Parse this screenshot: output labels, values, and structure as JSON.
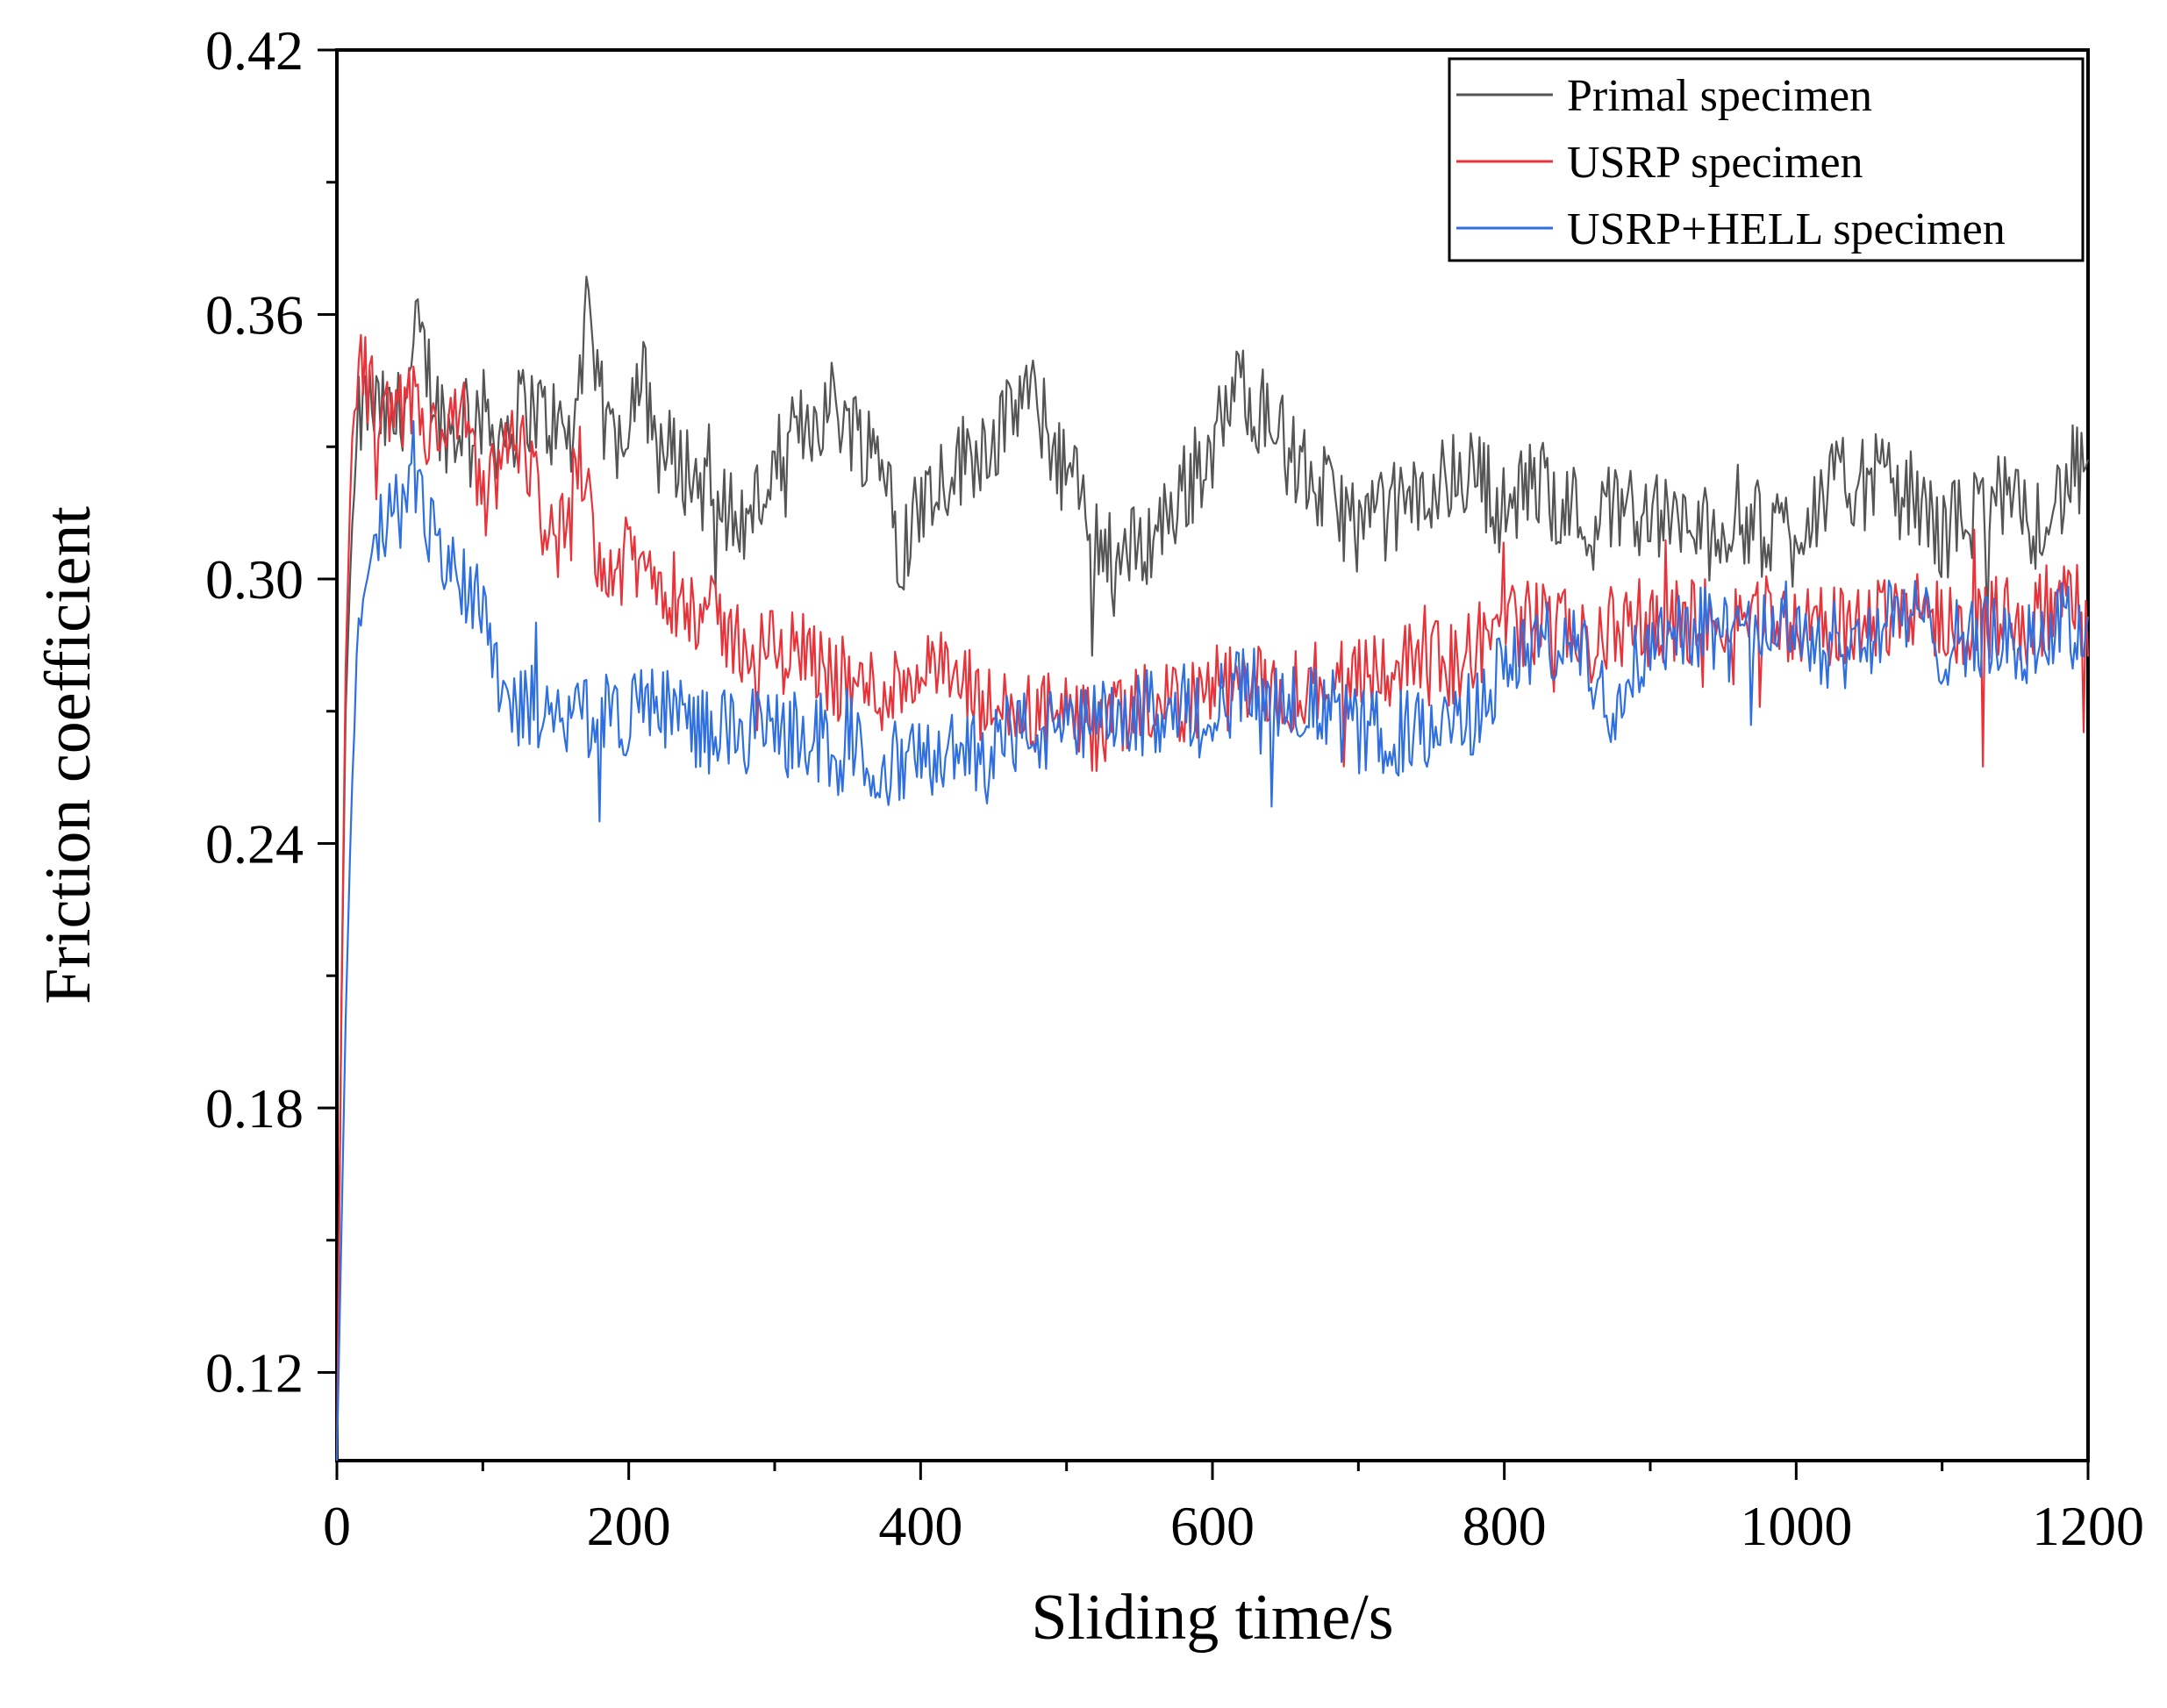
{
  "chart_data": {
    "type": "line",
    "title": "",
    "xlabel": "Sliding time/s",
    "ylabel": "Friction coefficient",
    "xlim": [
      0,
      1200
    ],
    "ylim": [
      0.1,
      0.42
    ],
    "xticks": [
      0,
      200,
      400,
      600,
      800,
      1000,
      1200
    ],
    "xtick_labels": [
      "0",
      "200",
      "400",
      "600",
      "800",
      "1000",
      "1200"
    ],
    "yticks": [
      0.12,
      0.18,
      0.24,
      0.3,
      0.36,
      0.42
    ],
    "ytick_labels": [
      "0.12",
      "0.18",
      "0.24",
      "0.30",
      "0.36",
      "0.42"
    ],
    "legend_position": "top-right",
    "grid": false,
    "series": [
      {
        "name": "Primal specimen",
        "color": "#555555",
        "x": [
          0,
          3,
          6,
          10,
          15,
          20,
          30,
          40,
          50,
          55,
          60,
          70,
          80,
          90,
          100,
          110,
          120,
          130,
          140,
          150,
          160,
          165,
          170,
          180,
          190,
          200,
          210,
          220,
          240,
          260,
          280,
          300,
          320,
          340,
          360,
          380,
          385,
          400,
          420,
          440,
          460,
          470,
          480,
          500,
          520,
          540,
          560,
          580,
          600,
          620,
          640,
          660,
          680,
          700,
          720,
          740,
          760,
          780,
          800,
          820,
          840,
          860,
          880,
          900,
          920,
          940,
          960,
          980,
          1000,
          1020,
          1040,
          1060,
          1080,
          1100,
          1120,
          1140,
          1160,
          1180,
          1190,
          1200
        ],
        "y": [
          0.1,
          0.2,
          0.27,
          0.31,
          0.335,
          0.34,
          0.337,
          0.335,
          0.345,
          0.355,
          0.35,
          0.338,
          0.332,
          0.34,
          0.337,
          0.333,
          0.335,
          0.34,
          0.337,
          0.335,
          0.33,
          0.34,
          0.36,
          0.34,
          0.33,
          0.34,
          0.345,
          0.33,
          0.325,
          0.318,
          0.312,
          0.325,
          0.335,
          0.34,
          0.332,
          0.325,
          0.305,
          0.318,
          0.325,
          0.33,
          0.335,
          0.343,
          0.338,
          0.325,
          0.31,
          0.305,
          0.31,
          0.32,
          0.33,
          0.345,
          0.335,
          0.325,
          0.318,
          0.312,
          0.315,
          0.318,
          0.322,
          0.325,
          0.315,
          0.322,
          0.318,
          0.312,
          0.318,
          0.315,
          0.312,
          0.31,
          0.315,
          0.31,
          0.312,
          0.32,
          0.322,
          0.322,
          0.318,
          0.31,
          0.315,
          0.318,
          0.312,
          0.318,
          0.325,
          0.32
        ]
      },
      {
        "name": "USRP specimen",
        "color": "#e8333a",
        "x": [
          0,
          3,
          6,
          10,
          15,
          20,
          30,
          40,
          50,
          60,
          70,
          80,
          90,
          100,
          110,
          120,
          130,
          140,
          150,
          160,
          165,
          170,
          180,
          190,
          200,
          220,
          240,
          260,
          280,
          300,
          320,
          340,
          360,
          380,
          400,
          420,
          440,
          460,
          480,
          500,
          520,
          540,
          560,
          580,
          600,
          620,
          640,
          660,
          680,
          700,
          720,
          740,
          760,
          780,
          800,
          820,
          840,
          860,
          880,
          900,
          920,
          940,
          960,
          980,
          1000,
          1020,
          1040,
          1060,
          1080,
          1100,
          1120,
          1140,
          1160,
          1180,
          1190,
          1200
        ],
        "y": [
          0.1,
          0.2,
          0.28,
          0.33,
          0.35,
          0.345,
          0.335,
          0.335,
          0.34,
          0.335,
          0.33,
          0.335,
          0.335,
          0.315,
          0.325,
          0.33,
          0.33,
          0.315,
          0.31,
          0.31,
          0.33,
          0.325,
          0.305,
          0.3,
          0.305,
          0.3,
          0.295,
          0.29,
          0.285,
          0.283,
          0.285,
          0.278,
          0.275,
          0.275,
          0.28,
          0.278,
          0.272,
          0.268,
          0.27,
          0.268,
          0.265,
          0.268,
          0.272,
          0.272,
          0.275,
          0.275,
          0.275,
          0.275,
          0.278,
          0.28,
          0.28,
          0.282,
          0.28,
          0.285,
          0.29,
          0.29,
          0.288,
          0.285,
          0.29,
          0.29,
          0.29,
          0.29,
          0.292,
          0.292,
          0.29,
          0.288,
          0.29,
          0.292,
          0.295,
          0.29,
          0.29,
          0.292,
          0.29,
          0.293,
          0.295,
          0.29
        ]
      },
      {
        "name": "USRP+HELL specimen",
        "color": "#2f6fe0",
        "x": [
          0,
          3,
          6,
          10,
          15,
          20,
          30,
          40,
          50,
          60,
          70,
          80,
          90,
          100,
          110,
          120,
          140,
          160,
          180,
          200,
          220,
          240,
          260,
          280,
          300,
          320,
          340,
          360,
          380,
          400,
          420,
          440,
          460,
          480,
          500,
          520,
          540,
          560,
          580,
          600,
          620,
          640,
          660,
          680,
          700,
          720,
          740,
          760,
          780,
          800,
          820,
          840,
          860,
          870,
          880,
          900,
          920,
          940,
          960,
          980,
          1000,
          1020,
          1040,
          1060,
          1080,
          1100,
          1120,
          1140,
          1160,
          1180,
          1190,
          1200
        ],
        "y": [
          0.1,
          0.15,
          0.2,
          0.25,
          0.29,
          0.3,
          0.31,
          0.315,
          0.318,
          0.315,
          0.308,
          0.3,
          0.3,
          0.295,
          0.28,
          0.272,
          0.27,
          0.27,
          0.268,
          0.27,
          0.272,
          0.268,
          0.265,
          0.265,
          0.265,
          0.265,
          0.26,
          0.26,
          0.258,
          0.258,
          0.26,
          0.262,
          0.265,
          0.265,
          0.265,
          0.267,
          0.268,
          0.27,
          0.272,
          0.272,
          0.275,
          0.275,
          0.272,
          0.27,
          0.265,
          0.265,
          0.265,
          0.265,
          0.27,
          0.28,
          0.285,
          0.285,
          0.28,
          0.27,
          0.278,
          0.285,
          0.29,
          0.29,
          0.285,
          0.29,
          0.29,
          0.285,
          0.285,
          0.29,
          0.292,
          0.285,
          0.288,
          0.285,
          0.285,
          0.29,
          0.288,
          0.29
        ]
      }
    ]
  }
}
